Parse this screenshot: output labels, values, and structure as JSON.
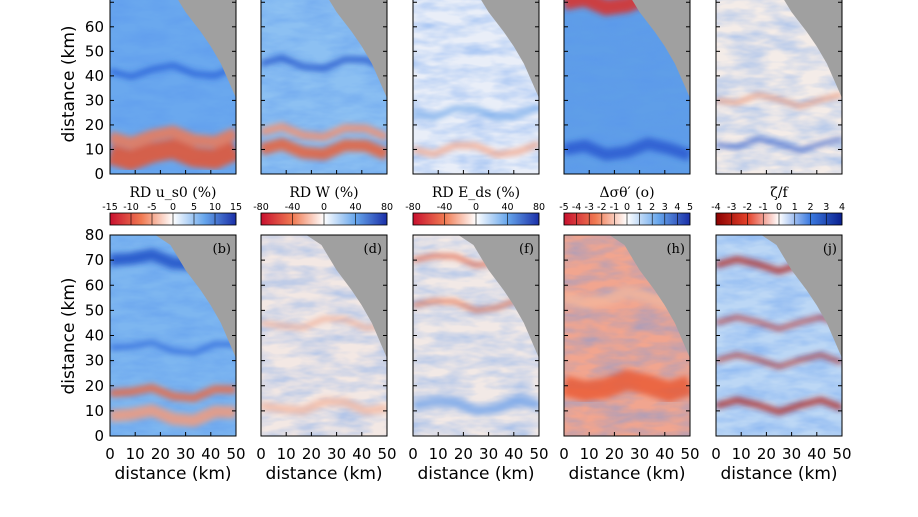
{
  "chart_data": {
    "type": "heatmap",
    "grid": "2 rows x 5 columns of map panels",
    "xlabel": "distance (km)",
    "ylabel": "distance (km)",
    "x_ticks": [
      "0",
      "10",
      "20",
      "30",
      "40",
      "50"
    ],
    "xlim": [
      0,
      50
    ],
    "y_ticks": [
      "0",
      "10",
      "20",
      "30",
      "40",
      "50",
      "60",
      "70",
      "80"
    ],
    "ylim": [
      0,
      80
    ],
    "land_color": "#a0a0a0",
    "colormap": [
      "#c8102e",
      "#ffffff",
      "#1e4ed8"
    ],
    "colorbars": [
      {
        "title": "RD u_s0 (%)",
        "ticks": [
          "-15",
          "-10",
          "-5",
          "0",
          "5",
          "10",
          "15"
        ],
        "range": [
          -15,
          15
        ]
      },
      {
        "title": "RD W (%)",
        "ticks": [
          "-80",
          "-40",
          "0",
          "40",
          "80"
        ],
        "range": [
          -80,
          80
        ]
      },
      {
        "title": "RD E_ds (%)",
        "ticks": [
          "-80",
          "-40",
          "0",
          "40",
          "80"
        ],
        "range": [
          -80,
          80
        ]
      },
      {
        "title": "Δσθ′ (o)",
        "ticks": [
          "-5",
          "-4",
          "-3",
          "-2",
          "-1",
          "0",
          "1",
          "2",
          "3",
          "4",
          "5"
        ],
        "range": [
          -5,
          5
        ]
      },
      {
        "title": "ζ/f",
        "ticks": [
          "-4",
          "-3",
          "-2",
          "-1",
          "0",
          "1",
          "2",
          "3",
          "4"
        ],
        "range": [
          -4,
          4
        ]
      }
    ],
    "panel_labels": [
      "(b)",
      "(d)",
      "(f)",
      "(h)",
      "(j)"
    ]
  }
}
